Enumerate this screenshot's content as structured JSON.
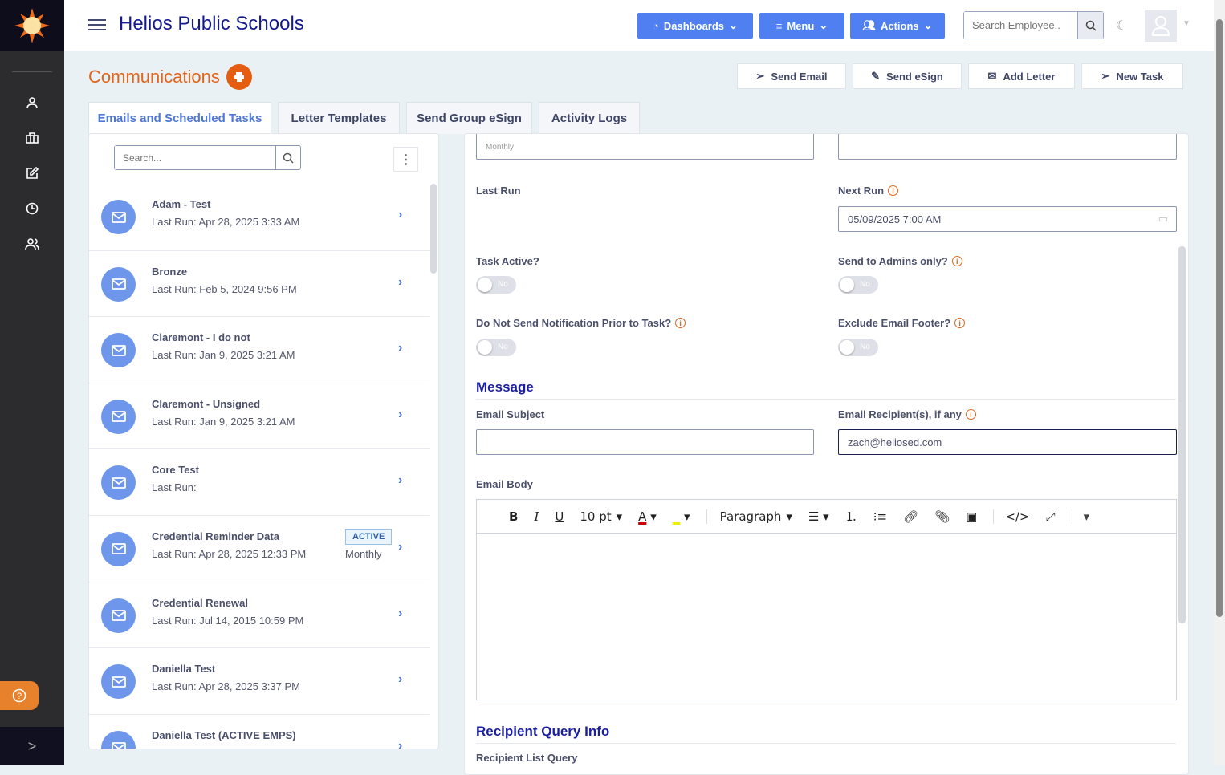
{
  "app": {
    "title": "Helios Public Schools"
  },
  "header": {
    "dashboards": "Dashboards",
    "menu": "Menu",
    "actions": "Actions",
    "search_placeholder": "Search Employee.."
  },
  "page": {
    "title": "Communications"
  },
  "actions": {
    "send_email": "Send Email",
    "send_esign": "Send eSign",
    "add_letter": "Add Letter",
    "new_task": "New Task"
  },
  "tabs": [
    {
      "label": "Emails and Scheduled Tasks"
    },
    {
      "label": "Letter Templates"
    },
    {
      "label": "Send Group eSign"
    },
    {
      "label": "Activity Logs"
    }
  ],
  "list": {
    "search_placeholder": "Search...",
    "items": [
      {
        "name": "Adam - Test",
        "last_run": "Last Run: Apr 28, 2025 3:33 AM"
      },
      {
        "name": "Bronze",
        "last_run": "Last Run: Feb 5, 2024 9:56 PM"
      },
      {
        "name": "Claremont - I do not",
        "last_run": "Last Run: Jan 9, 2025 3:21 AM"
      },
      {
        "name": "Claremont - Unsigned",
        "last_run": "Last Run: Jan 9, 2025 3:21 AM"
      },
      {
        "name": "Core Test",
        "last_run": "Last Run:"
      },
      {
        "name": "Credential Reminder Data",
        "last_run": "Last Run: Apr 28, 2025 12:33 PM",
        "badge": "ACTIVE",
        "frequency": "Monthly"
      },
      {
        "name": "Credential Renewal",
        "last_run": "Last Run: Jul 14, 2015 10:59 PM"
      },
      {
        "name": "Daniella Test",
        "last_run": "Last Run: Apr 28, 2025 3:37 PM"
      },
      {
        "name": "Daniella Test (ACTIVE EMPS)",
        "last_run": ""
      }
    ]
  },
  "form": {
    "frequency_value": "Monthly",
    "last_run_label": "Last Run",
    "next_run_label": "Next Run",
    "next_run_value": "05/09/2025 7:00 AM",
    "task_active_label": "Task Active?",
    "task_active": "No",
    "admins_only_label": "Send to Admins only?",
    "admins_only": "No",
    "no_notification_label": "Do Not Send Notification Prior to Task?",
    "no_notification": "No",
    "exclude_footer_label": "Exclude Email Footer?",
    "exclude_footer": "No",
    "message_heading": "Message",
    "subject_label": "Email Subject",
    "subject_value": "",
    "recipients_label": "Email Recipient(s), if any",
    "recipients_value": "zach@heliosed.com",
    "body_label": "Email Body",
    "editor": {
      "font_size": "10 pt",
      "block": "Paragraph"
    },
    "recipient_heading": "Recipient Query Info",
    "recipient_query_label": "Recipient List Query"
  }
}
